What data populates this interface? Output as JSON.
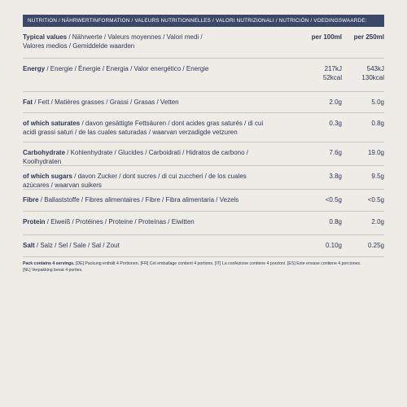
{
  "header": "NUTRITION / NÄHRWERTINFORMATION / VALEURS NUTRITIONNELLES / VALORI NUTRIZIONALI / NUTRICIÓN / VOEDINGSWAARDE:",
  "columns": {
    "name": "Typical values",
    "rest": " / Nährwerte / Valeurs moyennes / Valori medi / Valores medios / Gemiddelde waarden",
    "per100": "per 100ml",
    "per250": "per 250ml"
  },
  "rows": [
    {
      "name": "Energy",
      "rest": " / Energie / Énergie / Energia / Valor energético / Energie",
      "per100": [
        "217kJ",
        "52kcal"
      ],
      "per250": [
        "543kJ",
        "130kcal"
      ]
    },
    {
      "name": "Fat",
      "rest": " / Fett / Matières grasses / Grassi / Grasas / Vetten",
      "per100": [
        "2.0g"
      ],
      "per250": [
        "5.0g"
      ]
    },
    {
      "name": "of which saturates",
      "rest": " / davon gesättigte Fettsäuren / dont acides gras saturés / di cui acidi grassi saturi / de las cuales saturadas / waarvan verzadigde vetzuren",
      "per100": [
        "0.3g"
      ],
      "per250": [
        "0.8g"
      ]
    },
    {
      "name": "Carbohydrate",
      "rest": " / Kohlenhydrate / Glucides / Carboidrati / Hidratos de carbono / Koolhydraten",
      "per100": [
        "7.6g"
      ],
      "per250": [
        "19.0g"
      ]
    },
    {
      "name": "of which sugars",
      "rest": " / davon Zucker / dont sucres / di cui zuccheri / de los cuales azúcares / waarvan suikers",
      "per100": [
        "3.8g"
      ],
      "per250": [
        "9.5g"
      ]
    },
    {
      "name": "Fibre",
      "rest": " / Ballaststoffe / Fibres alimentaires / Fibre / Fibra alimentaria / Vezels",
      "per100": [
        "<0.5g"
      ],
      "per250": [
        "<0.5g"
      ]
    },
    {
      "name": "Protein",
      "rest": " / Eiweiß / Protéines / Proteine / Proteínas / Eiwitten",
      "per100": [
        "0.8g"
      ],
      "per250": [
        "2.0g"
      ]
    },
    {
      "name": "Salt",
      "rest": " / Salz / Sel / Sale / Sal / Zout",
      "per100": [
        "0.10g"
      ],
      "per250": [
        "0.25g"
      ]
    }
  ],
  "footer": {
    "bold": "Pack contains 4 servings.",
    "text": " [DE] Packung enthält 4 Portionen. [FR] Cet emballage contient 4 portions. [IT] La confezione contiene 4 porzioni. [ES] Este envase contiene 4 porciones. [NL] Verpakking bevat 4 porties."
  }
}
